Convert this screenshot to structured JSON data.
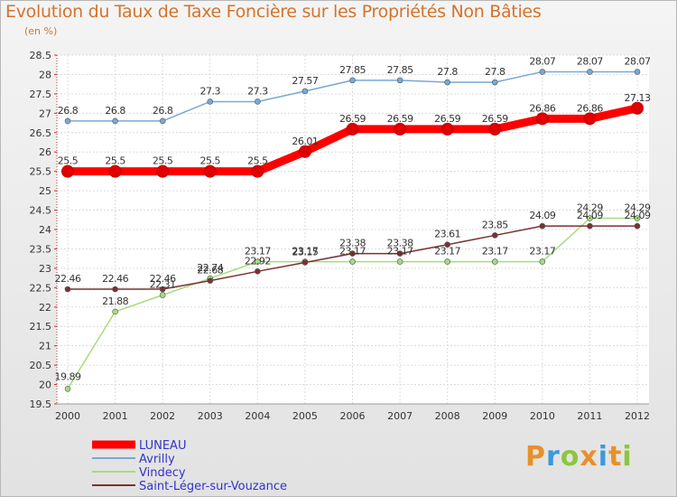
{
  "title": "Evolution du Taux de Taxe Foncière sur les Propriétés Non Bâties",
  "unit_label": "(en %)",
  "logo_text": "Proxiti",
  "logo_colors": [
    "#e8902a",
    "#3a9ad9",
    "#8dc63f",
    "#e8902a",
    "#3a9ad9",
    "#e8902a",
    "#8dc63f"
  ],
  "chart_data": {
    "type": "line",
    "title": "Evolution du Taux de Taxe Foncière sur les Propriétés Non Bâties",
    "ylabel": "(en %)",
    "xlabel": "",
    "x": [
      "2000",
      "2001",
      "2002",
      "2003",
      "2004",
      "2005",
      "2006",
      "2007",
      "2008",
      "2009",
      "2010",
      "2011",
      "2012"
    ],
    "ylim": [
      19.5,
      28.5
    ],
    "yticks": [
      "19.5",
      "20",
      "20.5",
      "21",
      "21.5",
      "22",
      "22.5",
      "23",
      "23.5",
      "24",
      "24.5",
      "25",
      "25.5",
      "26",
      "26.5",
      "27",
      "27.5",
      "28",
      "28.5"
    ],
    "series": [
      {
        "name": "LUNEAU",
        "color": "#ff0000",
        "values": [
          25.5,
          25.5,
          25.5,
          25.5,
          25.5,
          26.01,
          26.59,
          26.59,
          26.59,
          26.59,
          26.86,
          26.86,
          27.13
        ],
        "labels": [
          "25.5",
          "25.5",
          "25.5",
          "25.5",
          "25.5",
          "26.01",
          "26.59",
          "26.59",
          "26.59",
          "26.59",
          "26.86",
          "26.86",
          "27.13"
        ]
      },
      {
        "name": "Avrilly",
        "color": "#77a9d6",
        "values": [
          26.8,
          26.8,
          26.8,
          27.3,
          27.3,
          27.57,
          27.85,
          27.85,
          27.8,
          27.8,
          28.07,
          28.07,
          28.07
        ],
        "labels": [
          "26.8",
          "26.8",
          "26.8",
          "27.3",
          "27.3",
          "27.57",
          "27.85",
          "27.85",
          "27.8",
          "27.8",
          "28.07",
          "28.07",
          "28.07"
        ]
      },
      {
        "name": "Vindecy",
        "color": "#a6dc7c",
        "values": [
          19.89,
          21.88,
          22.31,
          22.74,
          23.17,
          23.17,
          23.17,
          23.17,
          23.17,
          23.17,
          23.17,
          24.29,
          24.29
        ],
        "labels": [
          "19.89",
          "21.88",
          "22.31",
          "22.74",
          "23.17",
          "23.17",
          "23.17",
          "23.17",
          "23.17",
          "23.17",
          "23.17",
          "24.29",
          "24.29"
        ]
      },
      {
        "name": "Saint-Léger-sur-Vouzance",
        "color": "#7a3232",
        "values": [
          22.46,
          22.46,
          22.46,
          22.68,
          22.92,
          23.15,
          23.38,
          23.38,
          23.61,
          23.85,
          24.09,
          24.09,
          24.09
        ],
        "labels": [
          "22.46",
          "22.46",
          "22.46",
          "22.68",
          "22.92",
          "23.15",
          "23.38",
          "23.38",
          "23.61",
          "23.85",
          "24.09",
          "24.09",
          "24.09"
        ]
      }
    ],
    "grid": true,
    "legend_position": "bottom-left"
  }
}
